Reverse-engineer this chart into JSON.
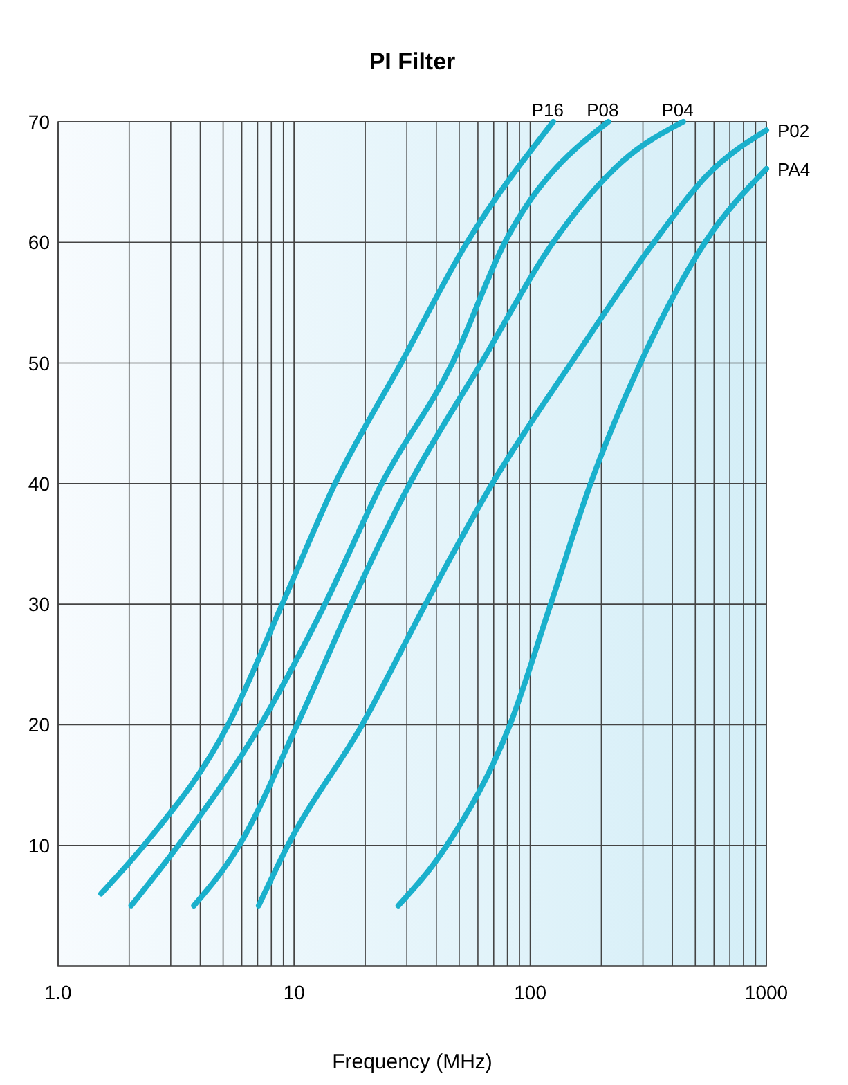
{
  "chart_data": {
    "type": "line",
    "title": "PI Filter",
    "xlabel": "Frequency (MHz)",
    "log": "x",
    "grid": true,
    "marker": "none",
    "line_style": "solid",
    "xlim": [
      1,
      1000
    ],
    "xticks": [
      {
        "value": 1,
        "label": "1.0"
      },
      10,
      100,
      1000
    ],
    "ylim": [
      0,
      70
    ],
    "yticks": [
      10,
      20,
      30,
      40,
      50,
      60,
      70
    ],
    "series": [
      {
        "name": "P16",
        "color": "#1ab0cc",
        "x": [
          1.52,
          2.31,
          5.25,
          8.9,
          14.9,
          28.4,
          54,
          125
        ],
        "values": [
          6,
          10,
          20,
          30,
          40,
          50,
          60,
          70
        ]
      },
      {
        "name": "P08",
        "color": "#1ab0cc",
        "x": [
          2.04,
          3.23,
          7.2,
          13.5,
          23.5,
          46.8,
          78,
          214
        ],
        "values": [
          5,
          10,
          20,
          30,
          40,
          50,
          60,
          70
        ]
      },
      {
        "name": "P04",
        "color": "#1ab0cc",
        "x": [
          3.76,
          5.85,
          10.3,
          17.4,
          30.9,
          62,
          125,
          245,
          444
        ],
        "values": [
          5,
          10,
          20,
          30,
          40,
          50,
          60,
          66.7,
          70
        ]
      },
      {
        "name": "P02",
        "color": "#1ab0cc",
        "x": [
          7.07,
          9.4,
          19.4,
          36,
          69,
          149,
          334,
          563,
          1000
        ],
        "values": [
          5,
          10,
          20,
          30,
          40,
          50,
          60,
          65.6,
          69.3
        ]
      },
      {
        "name": "PA4",
        "color": "#1ab0cc",
        "x": [
          27.6,
          44.3,
          82,
          122,
          180,
          293,
          550,
          1000
        ],
        "values": [
          5,
          10,
          20,
          30,
          40,
          50,
          60,
          66.1
        ]
      }
    ]
  }
}
